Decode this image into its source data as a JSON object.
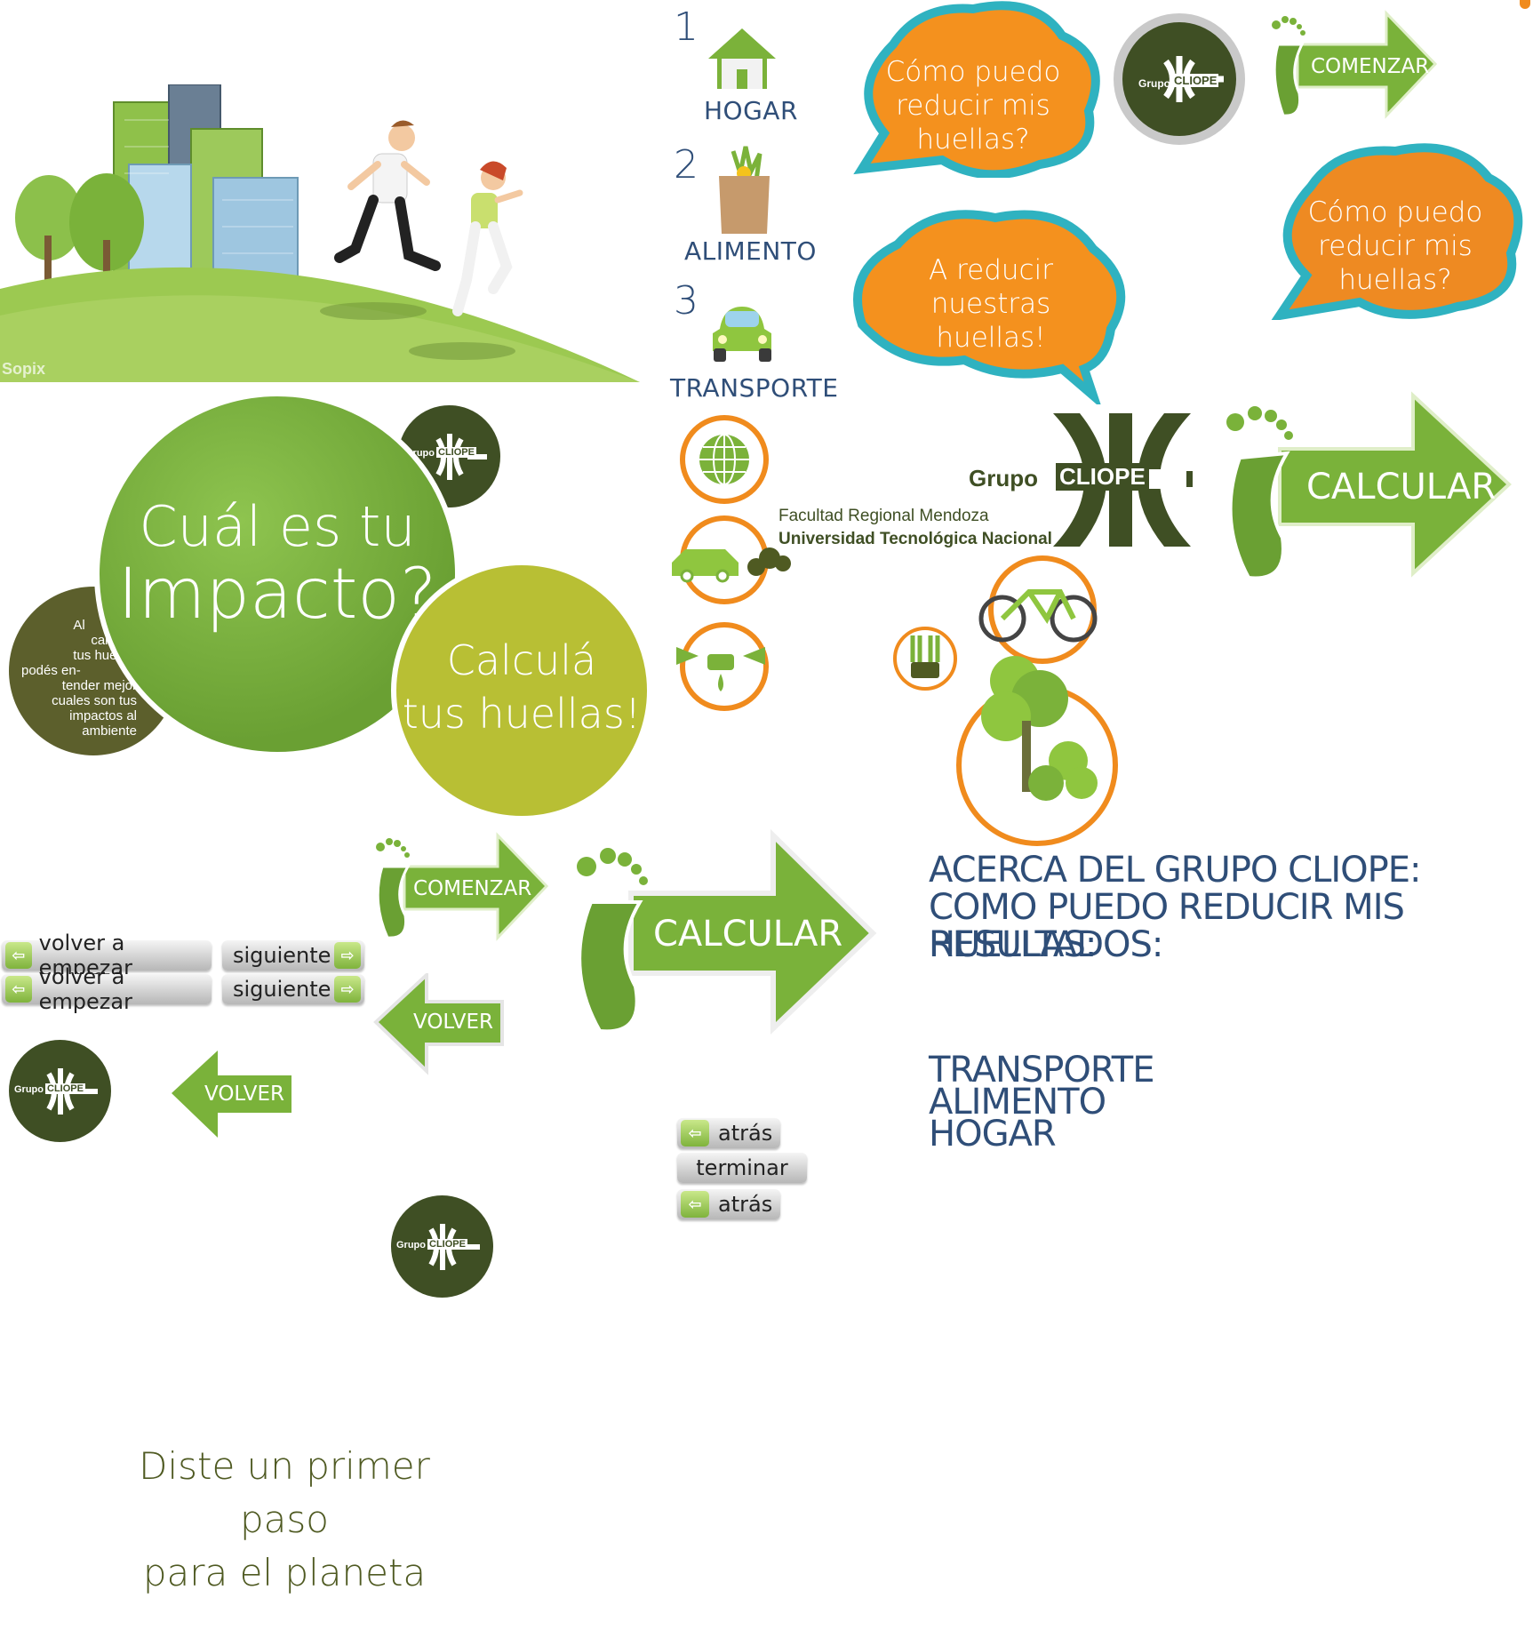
{
  "steps": [
    {
      "number": "1",
      "label": "HOGAR",
      "icon": "house-icon"
    },
    {
      "number": "2",
      "label": "ALIMENTO",
      "icon": "grocery-bag-icon"
    },
    {
      "number": "3",
      "label": "TRANSPORTE",
      "icon": "car-icon"
    }
  ],
  "bubbles": {
    "question_1": "Cómo puedo reducir mis huellas?",
    "answer": "A reducir nuestras huellas!",
    "question_2": "Cómo puedo reducir mis huellas?"
  },
  "buttons": {
    "comenzar_small": "COMENZAR",
    "comenzar_medium": "COMENZAR",
    "calcular_top": "CALCULAR",
    "calcular_main": "CALCULAR",
    "volver_1": "VOLVER",
    "volver_2": "VOLVER",
    "volver_empezar_1": "volver a empezar",
    "volver_empezar_2": "volver a empezar",
    "siguiente_1": "siguiente",
    "siguiente_2": "siguiente",
    "atras_1": "atrás",
    "terminar": "terminar",
    "atras_2": "atrás"
  },
  "impact": {
    "title_line1": "Cuál es tu",
    "title_line2": "Impacto?",
    "calcula_line1": "Calculá",
    "calcula_line2": "tus huellas!",
    "side_text": [
      "Al",
      "calcular",
      "tus huellas",
      "podés en-",
      "tender mejor",
      "cuales son tus",
      "impactos al",
      "ambiente"
    ]
  },
  "logo": {
    "brand_prefix": "Grupo",
    "brand_name": "CLIOPE",
    "faculty": "Facultad Regional Mendoza",
    "university": "Universidad Tecnológica Nacional"
  },
  "headings": {
    "line1": "ACERCA DEL GRUPO CLIOPE:",
    "line2": "COMO PUEDO REDUCIR MIS HUELLAS:",
    "line3": "RESULTADOS:"
  },
  "categories": [
    "TRANSPORTE",
    "ALIMENTO",
    "HOGAR"
  ],
  "hero_watermark": "Sopix",
  "closing": {
    "line1": "Diste un primer paso",
    "line2": "para el planeta"
  },
  "colors": {
    "green_dark": "#3f4f24",
    "green": "#7ab23a",
    "olive": "#b8bf34",
    "orange": "#f08b1d",
    "teal": "#2fb2c0",
    "navy_text": "#2f4e78"
  }
}
